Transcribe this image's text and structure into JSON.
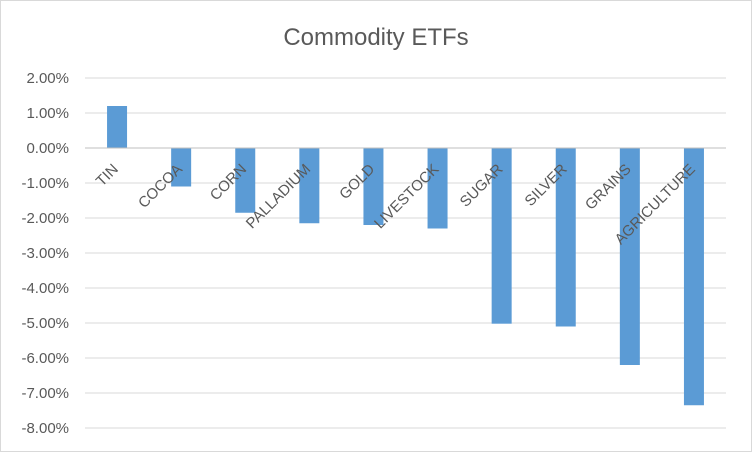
{
  "chart_data": {
    "type": "bar",
    "title": "Commodity ETFs",
    "xlabel": "",
    "ylabel": "",
    "ylim": [
      -8,
      2
    ],
    "ytick_step": 1,
    "ytick_labels": [
      "2.00%",
      "1.00%",
      "0.00%",
      "-1.00%",
      "-2.00%",
      "-3.00%",
      "-4.00%",
      "-5.00%",
      "-6.00%",
      "-7.00%",
      "-8.00%"
    ],
    "categories": [
      "TIN",
      "COCOA",
      "CORN",
      "PALLADIUM",
      "GOLD",
      "LIVESTOCK",
      "SUGAR",
      "SILVER",
      "GRAINS",
      "AGRICULTURE"
    ],
    "values": [
      1.2,
      -1.1,
      -1.85,
      -2.15,
      -2.2,
      -2.3,
      -5.02,
      -5.1,
      -6.2,
      -7.35
    ],
    "grid": true,
    "legend": "none",
    "bar_color": "#5b9bd5"
  }
}
